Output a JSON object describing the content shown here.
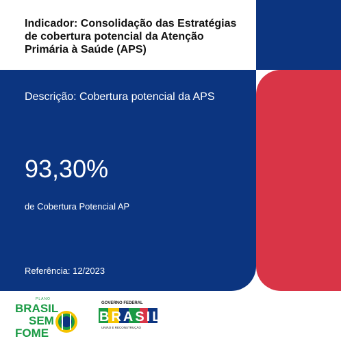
{
  "header": {
    "title": "Indicador: Consolidação das Estratégias de cobertura potencial da Atenção Primária à Saúde (APS)"
  },
  "main": {
    "description": "Descrição: Cobertura potencial da APS",
    "value": "93,30%",
    "value_caption": "de Cobertura Potencial AP",
    "reference": "Referência: 12/2023"
  },
  "logos": {
    "fome": {
      "kicker": "PLANO",
      "line1": "BRASIL",
      "line2": "SEM",
      "line3": "FOME"
    },
    "gov": {
      "top": "GOVERNO FEDERAL",
      "name": "BRASIL",
      "tagline": "UNIÃO E RECONSTRUÇÃO"
    }
  },
  "colors": {
    "blue": "#0c3580",
    "red": "#d93547",
    "green": "#1a9a44",
    "yellow": "#f5c400"
  }
}
